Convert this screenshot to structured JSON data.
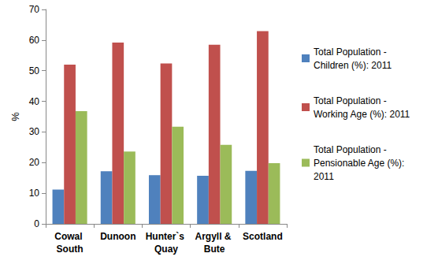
{
  "chart_data": {
    "type": "bar",
    "y_label": "%",
    "categories": [
      "Cowal South",
      "Dunoon",
      "Hunter`s Quay",
      "Argyll & Bute",
      "Scotland"
    ],
    "series": [
      {
        "name": "Total Population - Children (%): 2011",
        "color": "#4f81bd",
        "values": [
          11.2,
          17.2,
          15.9,
          15.7,
          17.3
        ]
      },
      {
        "name": "Total Population - Working Age (%): 2011",
        "color": "#c0504d",
        "values": [
          52.0,
          59.2,
          52.4,
          58.5,
          62.9
        ]
      },
      {
        "name": "Total Population - Pensionable Age (%): 2011",
        "color": "#9bbb59",
        "values": [
          36.8,
          23.6,
          31.7,
          25.8,
          19.8
        ]
      }
    ],
    "ylim": [
      0,
      70
    ],
    "yticks": [
      0,
      10,
      20,
      30,
      40,
      50,
      60,
      70
    ],
    "grid": false,
    "legend": "right"
  }
}
